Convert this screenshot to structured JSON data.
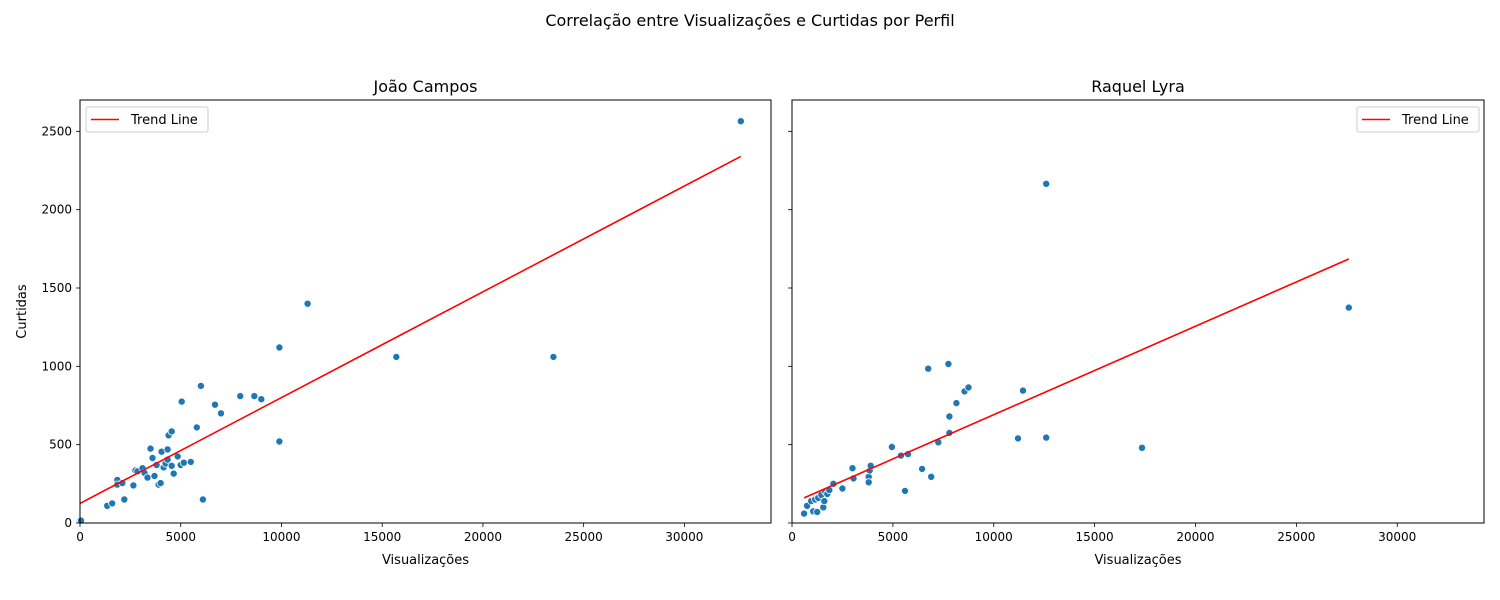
{
  "suptitle": "Correlação entre Visualizações e Curtidas por Perfil",
  "chart_data": [
    {
      "type": "scatter",
      "title": "João Campos",
      "xlabel": "Visualizações",
      "ylabel": "Curtidas",
      "xlim": [
        0,
        34300
      ],
      "ylim": [
        0,
        2700
      ],
      "xticks": [
        0,
        5000,
        10000,
        15000,
        20000,
        25000,
        30000
      ],
      "yticks": [
        0,
        500,
        1000,
        1500,
        2000,
        2500
      ],
      "grid": false,
      "legend": {
        "position": "top-left",
        "entries": [
          "Trend Line"
        ]
      },
      "point_color": "#1f77b4",
      "trend_color": "#ff0000",
      "trend_line": {
        "x": [
          0,
          32800
        ],
        "y": [
          125,
          2340
        ]
      },
      "points": [
        [
          0,
          15
        ],
        [
          50,
          15
        ],
        [
          1350,
          110
        ],
        [
          1600,
          125
        ],
        [
          1850,
          275
        ],
        [
          1850,
          245
        ],
        [
          2100,
          255
        ],
        [
          2200,
          150
        ],
        [
          2750,
          335
        ],
        [
          2850,
          330
        ],
        [
          2650,
          240
        ],
        [
          3100,
          350
        ],
        [
          3200,
          320
        ],
        [
          3350,
          290
        ],
        [
          3500,
          475
        ],
        [
          3600,
          415
        ],
        [
          3700,
          300
        ],
        [
          3800,
          370
        ],
        [
          3900,
          245
        ],
        [
          4000,
          255
        ],
        [
          4050,
          455
        ],
        [
          4150,
          355
        ],
        [
          4250,
          380
        ],
        [
          4350,
          470
        ],
        [
          4350,
          405
        ],
        [
          4400,
          560
        ],
        [
          4550,
          585
        ],
        [
          4550,
          365
        ],
        [
          4650,
          315
        ],
        [
          4850,
          425
        ],
        [
          5000,
          370
        ],
        [
          5050,
          775
        ],
        [
          5150,
          385
        ],
        [
          5500,
          390
        ],
        [
          5800,
          610
        ],
        [
          6000,
          875
        ],
        [
          6100,
          150
        ],
        [
          6700,
          755
        ],
        [
          7000,
          700
        ],
        [
          7950,
          810
        ],
        [
          8650,
          810
        ],
        [
          9000,
          790
        ],
        [
          9900,
          1120
        ],
        [
          9900,
          520
        ],
        [
          11300,
          1400
        ],
        [
          15700,
          1060
        ],
        [
          23500,
          1060
        ],
        [
          32800,
          2565
        ]
      ]
    },
    {
      "type": "scatter",
      "title": "Raquel Lyra",
      "xlabel": "Visualizações",
      "ylabel": "",
      "xlim": [
        0,
        34300
      ],
      "ylim": [
        0,
        2700
      ],
      "xticks": [
        0,
        5000,
        10000,
        15000,
        20000,
        25000,
        30000
      ],
      "yticks": [
        0,
        500,
        1000,
        1500,
        2000,
        2500
      ],
      "grid": false,
      "legend": {
        "position": "top-right",
        "entries": [
          "Trend Line"
        ]
      },
      "point_color": "#1f77b4",
      "trend_color": "#ff0000",
      "trend_line": {
        "x": [
          600,
          27600
        ],
        "y": [
          160,
          1685
        ]
      },
      "points": [
        [
          600,
          60
        ],
        [
          750,
          110
        ],
        [
          950,
          140
        ],
        [
          1050,
          75
        ],
        [
          1150,
          150
        ],
        [
          1250,
          70
        ],
        [
          1300,
          160
        ],
        [
          1450,
          180
        ],
        [
          1550,
          100
        ],
        [
          1600,
          140
        ],
        [
          1650,
          200
        ],
        [
          1750,
          185
        ],
        [
          1850,
          210
        ],
        [
          2050,
          250
        ],
        [
          2500,
          220
        ],
        [
          3000,
          350
        ],
        [
          3050,
          285
        ],
        [
          3800,
          295
        ],
        [
          3800,
          260
        ],
        [
          3850,
          335
        ],
        [
          3900,
          365
        ],
        [
          4950,
          485
        ],
        [
          5400,
          430
        ],
        [
          5600,
          205
        ],
        [
          5750,
          440
        ],
        [
          6450,
          345
        ],
        [
          6750,
          985
        ],
        [
          6900,
          295
        ],
        [
          7250,
          515
        ],
        [
          7750,
          1015
        ],
        [
          7800,
          575
        ],
        [
          7800,
          680
        ],
        [
          8150,
          765
        ],
        [
          8550,
          840
        ],
        [
          8750,
          865
        ],
        [
          11200,
          540
        ],
        [
          11450,
          845
        ],
        [
          12600,
          545
        ],
        [
          12600,
          2165
        ],
        [
          17350,
          480
        ],
        [
          27600,
          1375
        ]
      ]
    }
  ]
}
